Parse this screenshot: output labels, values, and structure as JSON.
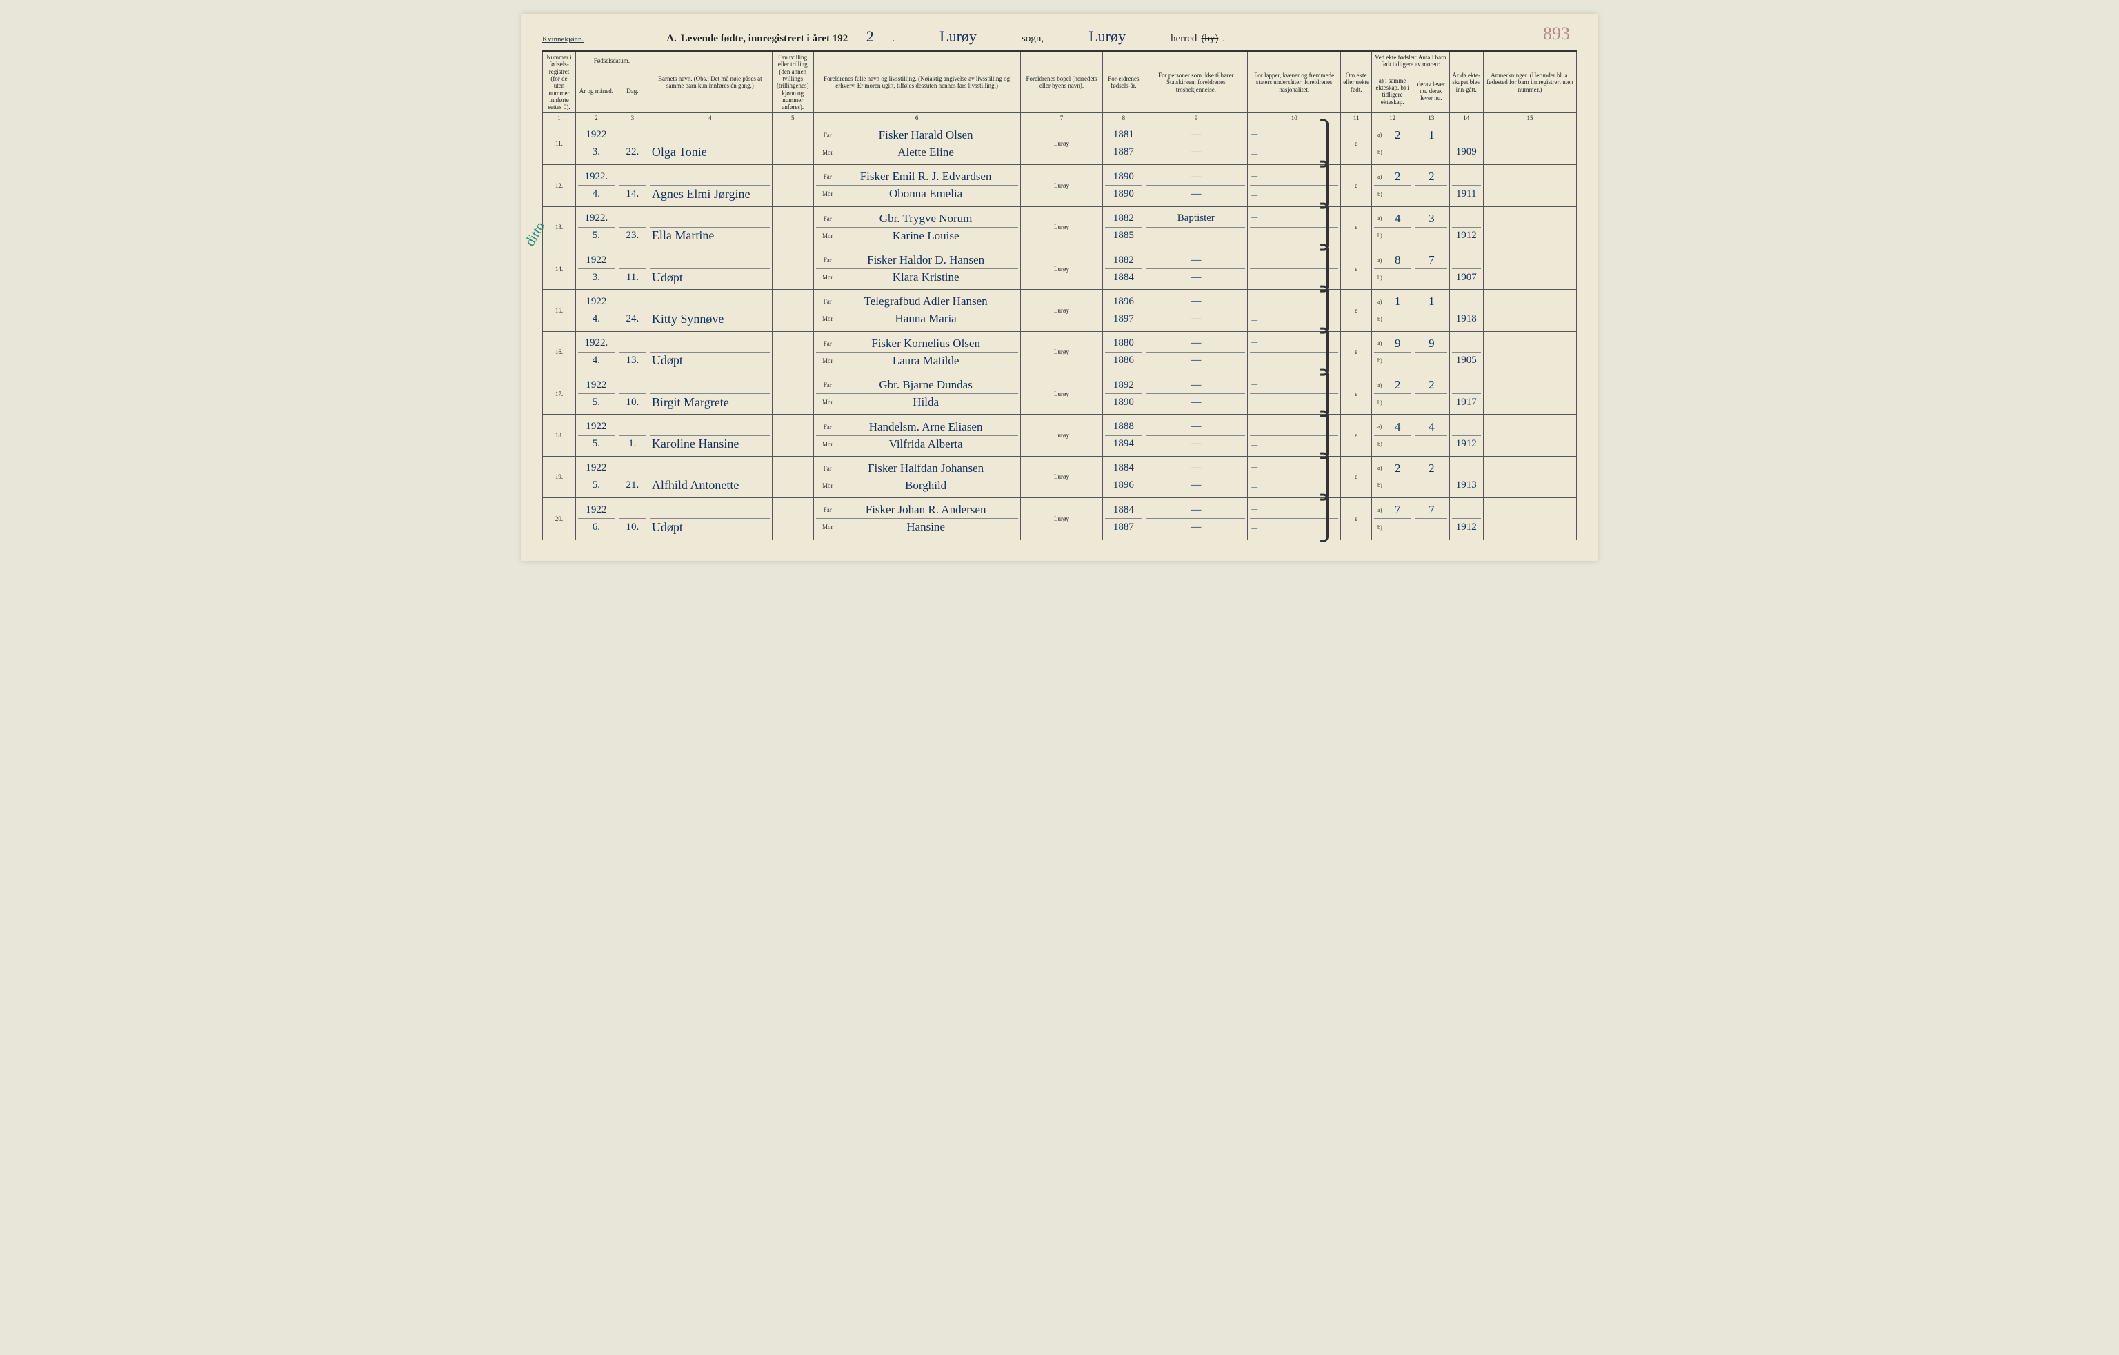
{
  "header": {
    "gender": "Kvinnekjønn.",
    "title_prefix": "A.",
    "title_main": "Levende fødte, innregistrert i året 192",
    "year_suffix": "2",
    "sogn_value": "Lurøy",
    "sogn_label": "sogn,",
    "herred_value": "Lurøy",
    "herred_label": "herred",
    "by_crossed": "(by)",
    "page_number": "893"
  },
  "margin_note": "ditto",
  "columns": {
    "c1": "Nummer i fødsels-registret (for de uten nummer innførte settes 0).",
    "c2_group": "Fødselsdatum.",
    "c2": "År og måned.",
    "c3": "Dag.",
    "c4": "Barnets navn.\n(Obs.: Det må nøie påses at samme barn kun innføres én gang.)",
    "c5": "Om tvilling eller trilling (den annen tvillings (trillingenes) kjønn og nummer anføres).",
    "c6": "Foreldrenes fulle navn og livsstilling.\n(Nøiaktig angivelse av livsstilling og erhverv. Er moren ugift, tilføies dessuten hennes fars livsstilling.)",
    "c6_far": "Far",
    "c6_mor": "Mor",
    "c7": "Foreldrenes bopel (herredets eller byens navn).",
    "c8": "For-eldrenes fødsels-år.",
    "c9": "For personer som ikke tilhører Statskirken: foreldrenes trosbekjennelse.",
    "c10": "For lapper, kvener og fremmede staters undersåtter: foreldrenes nasjonalitet.",
    "c11": "Om ekte eller uekte født.",
    "c12_13_group": "Ved ekte fødsler: Antall barn født tidligere av moren:",
    "c12": "a) i samme ekteskap.\nb) i tidligere ekteskap.",
    "c13": "derav lever nu.\nderav lever nu.",
    "c14": "År da ekte-skapet blev inn-gått.",
    "c15": "Anmerkninger.\n(Herunder bl. a. fødested for barn innregistrert uten nummer.)"
  },
  "colnums": [
    "1",
    "2",
    "3",
    "4",
    "5",
    "6",
    "7",
    "8",
    "9",
    "10",
    "11",
    "12",
    "13",
    "14",
    "15"
  ],
  "rows": [
    {
      "num": "11.",
      "year": "1922",
      "month": "3.",
      "day": "22.",
      "child": "Olga Tonie",
      "far": "Fisker Harald Olsen",
      "mor": "Alette Eline",
      "bopel": "Lurøy",
      "fy_far": "1881",
      "fy_mor": "1887",
      "tros_far": "—",
      "tros_mor": "—",
      "nat_far": "—",
      "nat_mor": "—",
      "ekte": "e",
      "a12": "2",
      "a13": "1",
      "b12": "",
      "b13": "",
      "c14v": "1909",
      "anm": ""
    },
    {
      "num": "12.",
      "year": "1922.",
      "month": "4.",
      "day": "14.",
      "child": "Agnes Elmi Jørgine",
      "far": "Fisker Emil R. J. Edvardsen",
      "mor": "Obonna Emelia",
      "bopel": "Lurøy",
      "fy_far": "1890",
      "fy_mor": "1890",
      "tros_far": "—",
      "tros_mor": "—",
      "nat_far": "—",
      "nat_mor": "—",
      "ekte": "e",
      "a12": "2",
      "a13": "2",
      "b12": "",
      "b13": "",
      "c14v": "1911",
      "anm": ""
    },
    {
      "num": "13.",
      "year": "1922.",
      "month": "5.",
      "day": "23.",
      "child": "Ella Martine",
      "far": "Gbr. Trygve Norum",
      "mor": "Karine Louise",
      "bopel": "Lurøy",
      "fy_far": "1882",
      "fy_mor": "1885",
      "tros_far": "Baptister",
      "tros_mor": "",
      "nat_far": "—",
      "nat_mor": "—",
      "ekte": "e",
      "a12": "4",
      "a13": "3",
      "b12": "",
      "b13": "",
      "c14v": "1912",
      "anm": ""
    },
    {
      "num": "14.",
      "year": "1922",
      "month": "3.",
      "day": "11.",
      "child": "Udøpt",
      "far": "Fisker Haldor D. Hansen",
      "mor": "Klara Kristine",
      "bopel": "Lurøy",
      "fy_far": "1882",
      "fy_mor": "1884",
      "tros_far": "—",
      "tros_mor": "—",
      "nat_far": "—",
      "nat_mor": "—",
      "ekte": "e",
      "a12": "8",
      "a13": "7",
      "b12": "",
      "b13": "",
      "c14v": "1907",
      "anm": ""
    },
    {
      "num": "15.",
      "year": "1922",
      "month": "4.",
      "day": "24.",
      "child": "Kitty Synnøve",
      "far": "Telegrafbud Adler Hansen",
      "mor": "Hanna Maria",
      "bopel": "Lurøy",
      "fy_far": "1896",
      "fy_mor": "1897",
      "tros_far": "—",
      "tros_mor": "—",
      "nat_far": "—",
      "nat_mor": "—",
      "ekte": "e",
      "a12": "1",
      "a13": "1",
      "b12": "",
      "b13": "",
      "c14v": "1918",
      "anm": ""
    },
    {
      "num": "16.",
      "year": "1922.",
      "month": "4.",
      "day": "13.",
      "child": "Udøpt",
      "far": "Fisker Kornelius Olsen",
      "mor": "Laura Matilde",
      "bopel": "Lurøy",
      "fy_far": "1880",
      "fy_mor": "1886",
      "tros_far": "—",
      "tros_mor": "—",
      "nat_far": "—",
      "nat_mor": "—",
      "ekte": "e",
      "a12": "9",
      "a13": "9",
      "b12": "",
      "b13": "",
      "c14v": "1905",
      "anm": ""
    },
    {
      "num": "17.",
      "year": "1922",
      "month": "5.",
      "day": "10.",
      "child": "Birgit Margrete",
      "far": "Gbr. Bjarne Dundas",
      "mor": "Hilda",
      "bopel": "Lurøy",
      "fy_far": "1892",
      "fy_mor": "1890",
      "tros_far": "—",
      "tros_mor": "—",
      "nat_far": "—",
      "nat_mor": "—",
      "ekte": "e",
      "a12": "2",
      "a13": "2",
      "b12": "",
      "b13": "",
      "c14v": "1917",
      "anm": ""
    },
    {
      "num": "18.",
      "year": "1922",
      "month": "5.",
      "day": "1.",
      "child": "Karoline Hansine",
      "far": "Handelsm. Arne Eliasen",
      "mor": "Vilfrida Alberta",
      "bopel": "Lurøy",
      "fy_far": "1888",
      "fy_mor": "1894",
      "tros_far": "—",
      "tros_mor": "—",
      "nat_far": "—",
      "nat_mor": "—",
      "ekte": "e",
      "a12": "4",
      "a13": "4",
      "b12": "",
      "b13": "",
      "c14v": "1912",
      "anm": ""
    },
    {
      "num": "19.",
      "year": "1922",
      "month": "5.",
      "day": "21.",
      "child": "Alfhild Antonette",
      "far": "Fisker Halfdan Johansen",
      "mor": "Borghild",
      "bopel": "Lurøy",
      "fy_far": "1884",
      "fy_mor": "1896",
      "tros_far": "—",
      "tros_mor": "—",
      "nat_far": "—",
      "nat_mor": "—",
      "ekte": "e",
      "a12": "2",
      "a13": "2",
      "b12": "",
      "b13": "",
      "c14v": "1913",
      "anm": ""
    },
    {
      "num": "20.",
      "year": "1922",
      "month": "6.",
      "day": "10.",
      "child": "Udøpt",
      "far": "Fisker Johan R. Andersen",
      "mor": "Hansine",
      "bopel": "Lurøy",
      "fy_far": "1884",
      "fy_mor": "1887",
      "tros_far": "—",
      "tros_mor": "—",
      "nat_far": "—",
      "nat_mor": "—",
      "ekte": "e",
      "a12": "7",
      "a13": "7",
      "b12": "",
      "b13": "",
      "c14v": "1912",
      "anm": ""
    }
  ],
  "styling": {
    "paper_color": "#ede9d6",
    "ink_print": "#222222",
    "ink_handwriting": "#16305a",
    "ink_pagenum": "#b08a8a",
    "ink_margin": "#2a8a7a",
    "border_color": "#555555",
    "font_print": "Georgia, Times New Roman, serif",
    "font_hand": "Brush Script MT, Segoe Script, cursive",
    "header_fontsize_pt": 9,
    "body_hand_fontsize_pt": 18,
    "col_widths_pct": [
      3.2,
      4.0,
      3.0,
      12.0,
      4.0,
      20.0,
      8.0,
      4.0,
      10.0,
      9.0,
      3.0,
      4.0,
      3.5,
      3.3,
      9.0
    ]
  }
}
